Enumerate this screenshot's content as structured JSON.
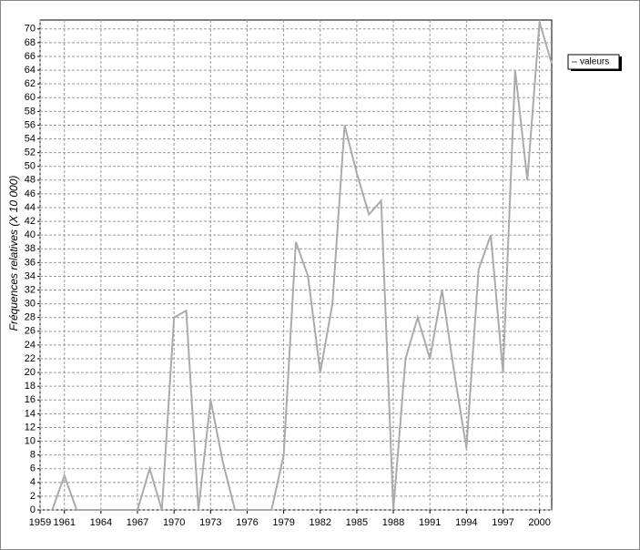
{
  "chart_data": {
    "type": "line",
    "y_label": "Fréquences relatives (X 10 000)",
    "x": [
      1960,
      1961,
      1962,
      1963,
      1964,
      1965,
      1966,
      1967,
      1968,
      1969,
      1970,
      1971,
      1972,
      1973,
      1974,
      1975,
      1976,
      1977,
      1978,
      1979,
      1980,
      1981,
      1982,
      1983,
      1984,
      1985,
      1986,
      1987,
      1988,
      1989,
      1990,
      1991,
      1992,
      1993,
      1994,
      1995,
      1996,
      1997,
      1998,
      1999,
      2000,
      2001
    ],
    "series": [
      {
        "name": "valeurs",
        "color": "#aaaaaa",
        "values": [
          0,
          5,
          0,
          0,
          0,
          0,
          0,
          0,
          6,
          0,
          28,
          29,
          0,
          16,
          7,
          0,
          0,
          0,
          0,
          8,
          39,
          34,
          20,
          30,
          56,
          49,
          43,
          45,
          0,
          22,
          28,
          22,
          32,
          20,
          9,
          35,
          40,
          20,
          64,
          48,
          71,
          65
        ]
      }
    ],
    "xlim": [
      1959,
      2001
    ],
    "xticks": [
      1959,
      1961,
      1964,
      1967,
      1970,
      1973,
      1976,
      1979,
      1982,
      1985,
      1988,
      1991,
      1994,
      1997,
      2000
    ],
    "ylim": [
      0,
      71.3
    ],
    "yticks": [
      0,
      2,
      4,
      6,
      8,
      10,
      12,
      14,
      16,
      18,
      20,
      22,
      24,
      26,
      28,
      30,
      32,
      34,
      36,
      38,
      40,
      42,
      44,
      46,
      48,
      50,
      52,
      54,
      56,
      58,
      60,
      62,
      64,
      66,
      68,
      70
    ],
    "grid": true,
    "legend": "top-right"
  }
}
